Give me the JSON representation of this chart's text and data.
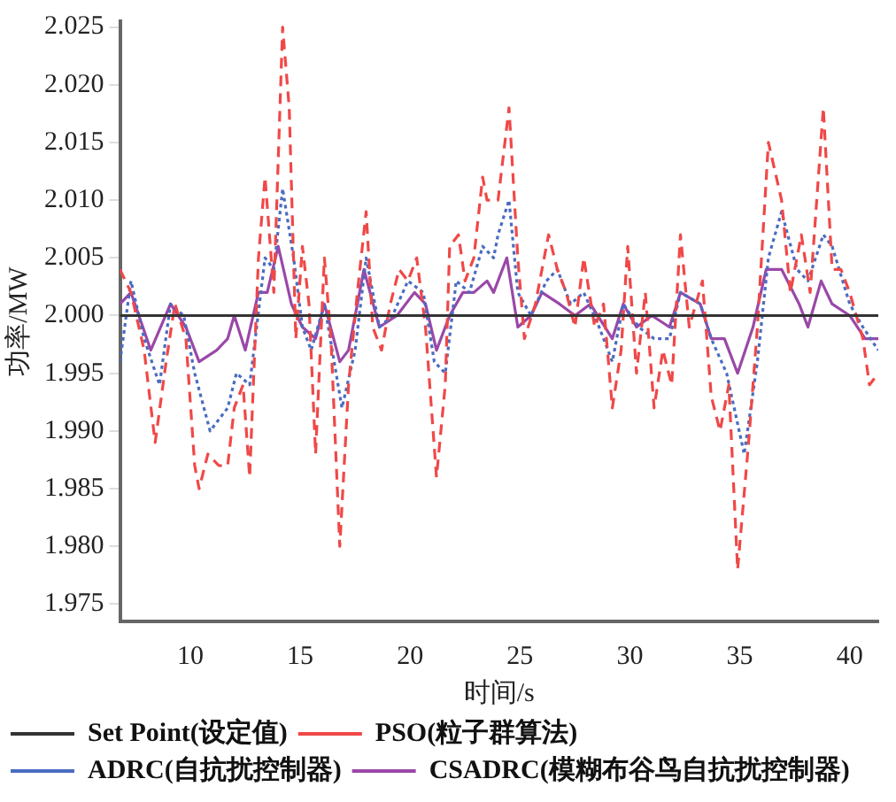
{
  "chart_data": {
    "type": "line",
    "xlabel": "时间/s",
    "ylabel": "功率/MW",
    "xlim": [
      6.8,
      41.3
    ],
    "xticks": [
      10,
      15,
      20,
      25,
      30,
      35,
      40
    ],
    "ylim": [
      1.9735,
      2.0255
    ],
    "yticks": [
      {
        "value": 1.975,
        "label": "1.975"
      },
      {
        "value": 1.98,
        "label": "1.980"
      },
      {
        "value": 1.985,
        "label": "1.985"
      },
      {
        "value": 1.99,
        "label": "1.990"
      },
      {
        "value": 1.995,
        "label": "1.995"
      },
      {
        "value": 2.0,
        "label": "2.000"
      },
      {
        "value": 2.005,
        "label": "2.005"
      },
      {
        "value": 2.01,
        "label": "2.010"
      },
      {
        "value": 2.015,
        "label": "2.015"
      },
      {
        "value": 2.02,
        "label": "2.020"
      },
      {
        "value": 2.025,
        "label": "2.025"
      }
    ],
    "grid": false,
    "legend": "bottom",
    "marker": "none",
    "series": [
      {
        "name": "Set Point(设定值)",
        "color": "#333333",
        "line_style": "solid",
        "x": [
          6.8,
          41.3
        ],
        "values": [
          2.0,
          2.0
        ]
      },
      {
        "name": "PSO(粒子群算法)",
        "color": "#f04848",
        "line_style": "dashed",
        "x": [
          6.8,
          7.3,
          7.9,
          8.4,
          8.9,
          9.3,
          9.8,
          10.2,
          10.4,
          10.8,
          11.3,
          11.7,
          12.0,
          12.4,
          12.7,
          13.1,
          13.4,
          13.8,
          14.2,
          14.5,
          14.8,
          15.1,
          15.4,
          15.7,
          16.1,
          16.4,
          16.8,
          17.2,
          17.6,
          18.0,
          18.3,
          18.7,
          19.1,
          19.5,
          19.9,
          20.3,
          20.7,
          21.2,
          21.6,
          21.8,
          22.2,
          22.5,
          22.9,
          23.3,
          23.5,
          24.0,
          24.5,
          24.9,
          25.2,
          25.7,
          26.3,
          26.7,
          27.1,
          27.5,
          27.9,
          28.4,
          28.8,
          29.2,
          29.6,
          29.9,
          30.3,
          30.7,
          31.1,
          31.5,
          31.9,
          32.3,
          32.7,
          33.3,
          33.7,
          34.1,
          34.5,
          34.9,
          35.4,
          35.8,
          36.3,
          36.9,
          37.3,
          37.8,
          38.2,
          38.8,
          39.2,
          39.6,
          40.0,
          40.6,
          40.9,
          41.3
        ],
        "values": [
          2.004,
          2.002,
          1.997,
          1.989,
          1.996,
          2.001,
          1.998,
          1.987,
          1.985,
          1.988,
          1.987,
          1.987,
          1.992,
          1.994,
          1.986,
          2.005,
          2.012,
          2.002,
          2.025,
          2.018,
          1.998,
          2.006,
          2.001,
          1.988,
          2.005,
          1.998,
          1.98,
          1.994,
          2.002,
          2.009,
          1.999,
          1.997,
          2.001,
          2.004,
          2.003,
          2.005,
          1.999,
          1.986,
          1.994,
          2.006,
          2.007,
          2.003,
          2.005,
          2.012,
          2.01,
          2.01,
          2.018,
          2.005,
          1.998,
          2.001,
          2.007,
          2.004,
          2.002,
          1.999,
          2.005,
          1.999,
          2.001,
          1.992,
          1.997,
          2.006,
          1.995,
          2.002,
          1.992,
          1.997,
          1.994,
          2.007,
          1.999,
          2.003,
          1.993,
          1.99,
          1.994,
          1.978,
          1.989,
          1.999,
          2.015,
          2.01,
          2.002,
          2.007,
          2.002,
          2.018,
          2.004,
          2.004,
          2.002,
          1.998,
          1.994,
          1.995
        ]
      },
      {
        "name": "ADRC(自抗扰控制器)",
        "color": "#4a6cc0",
        "line_style": "dotted",
        "x": [
          6.8,
          7.3,
          7.9,
          8.6,
          9.1,
          9.7,
          10.2,
          10.9,
          11.7,
          12.1,
          12.7,
          13.4,
          13.8,
          14.2,
          14.7,
          15.1,
          15.5,
          16.1,
          16.9,
          17.5,
          18.0,
          18.6,
          19.2,
          19.9,
          20.6,
          21.1,
          21.6,
          22.1,
          22.7,
          23.3,
          23.8,
          24.0,
          24.5,
          24.9,
          25.5,
          26.2,
          26.7,
          27.3,
          27.9,
          28.6,
          29.2,
          29.7,
          30.4,
          31.1,
          31.8,
          32.3,
          33.2,
          33.7,
          34.4,
          35.2,
          35.8,
          36.3,
          36.9,
          37.6,
          38.1,
          38.8,
          39.2,
          40.0,
          40.6,
          41.3
        ],
        "values": [
          1.996,
          2.003,
          1.998,
          1.994,
          2.001,
          2.0,
          1.995,
          1.99,
          1.992,
          1.995,
          1.994,
          2.005,
          2.004,
          2.011,
          2.005,
          1.999,
          1.997,
          2.001,
          1.992,
          1.997,
          2.005,
          1.999,
          2.0,
          2.003,
          2.002,
          1.996,
          1.995,
          2.003,
          2.002,
          2.006,
          2.005,
          2.007,
          2.01,
          2.002,
          2.0,
          2.003,
          2.004,
          2.001,
          2.002,
          1.999,
          1.996,
          2.001,
          1.999,
          1.998,
          1.998,
          2.002,
          2.001,
          1.998,
          1.995,
          1.988,
          1.996,
          2.005,
          2.009,
          2.004,
          2.003,
          2.007,
          2.006,
          2.001,
          1.999,
          1.997
        ]
      },
      {
        "name": "CSADRC(模糊布谷鸟自抗扰控制器)",
        "color": "#9a48a8",
        "line_style": "solid",
        "x": [
          6.8,
          7.3,
          8.2,
          9.1,
          9.8,
          10.4,
          11.2,
          11.7,
          12.0,
          12.5,
          13.1,
          13.5,
          14.0,
          14.6,
          15.1,
          15.7,
          16.1,
          16.8,
          17.2,
          17.9,
          18.6,
          19.4,
          20.2,
          20.7,
          21.2,
          21.8,
          22.4,
          22.9,
          23.5,
          23.8,
          24.4,
          24.9,
          25.5,
          26.0,
          26.8,
          27.5,
          28.2,
          29.2,
          29.7,
          30.3,
          31.0,
          31.8,
          32.3,
          33.2,
          33.7,
          34.3,
          34.9,
          35.6,
          36.2,
          36.9,
          37.7,
          38.1,
          38.7,
          39.2,
          40.0,
          40.7,
          41.3
        ],
        "values": [
          2.001,
          2.002,
          1.997,
          2.001,
          1.999,
          1.996,
          1.997,
          1.998,
          2.0,
          1.997,
          2.002,
          2.002,
          2.006,
          2.001,
          1.999,
          1.998,
          2.001,
          1.996,
          1.997,
          2.004,
          1.999,
          2.0,
          2.002,
          2.001,
          1.997,
          2.0,
          2.002,
          2.002,
          2.003,
          2.002,
          2.005,
          1.999,
          2.0,
          2.002,
          2.001,
          2.0,
          2.001,
          1.998,
          2.001,
          1.999,
          2.0,
          1.999,
          2.002,
          2.001,
          1.998,
          1.998,
          1.995,
          1.999,
          2.004,
          2.004,
          2.001,
          1.999,
          2.003,
          2.001,
          2.0,
          1.998,
          1.998
        ]
      }
    ]
  }
}
